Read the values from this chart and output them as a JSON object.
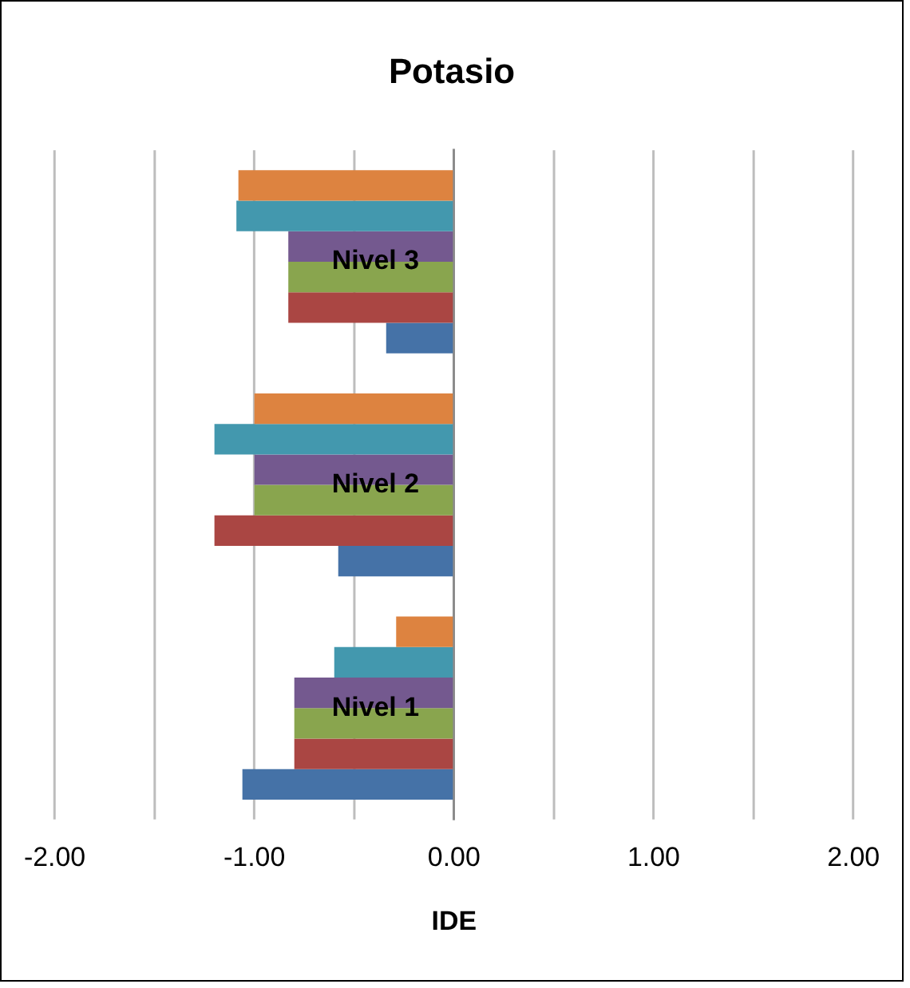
{
  "chart_data": {
    "type": "bar",
    "orientation": "horizontal",
    "title": "Potasio",
    "xlabel": "IDE",
    "categories": [
      "Nivel 3",
      "Nivel 2",
      "Nivel 1"
    ],
    "series": [
      {
        "color": "#dd8340",
        "values": [
          -1.08,
          -1.0,
          -0.29
        ]
      },
      {
        "color": "#4398ae",
        "values": [
          -1.09,
          -1.2,
          -0.6
        ]
      },
      {
        "color": "#74598f",
        "values": [
          -0.83,
          -1.0,
          -0.8
        ]
      },
      {
        "color": "#89a54e",
        "values": [
          -0.83,
          -1.0,
          -0.8
        ]
      },
      {
        "color": "#aa4643",
        "values": [
          -0.83,
          -1.2,
          -0.8
        ]
      },
      {
        "color": "#4572a7",
        "values": [
          -0.34,
          -0.58,
          -1.06
        ]
      }
    ],
    "xlim": [
      -2,
      2
    ],
    "xticks": [
      {
        "value": -2,
        "label": "-2.00"
      },
      {
        "value": -1.5,
        "label": null
      },
      {
        "value": -1,
        "label": "-1.00"
      },
      {
        "value": -0.5,
        "label": null
      },
      {
        "value": 0,
        "label": "0.00"
      },
      {
        "value": 0.5,
        "label": null
      },
      {
        "value": 1,
        "label": "1.00"
      },
      {
        "value": 1.5,
        "label": null
      },
      {
        "value": 2,
        "label": "2.00"
      }
    ],
    "grid": "x"
  }
}
